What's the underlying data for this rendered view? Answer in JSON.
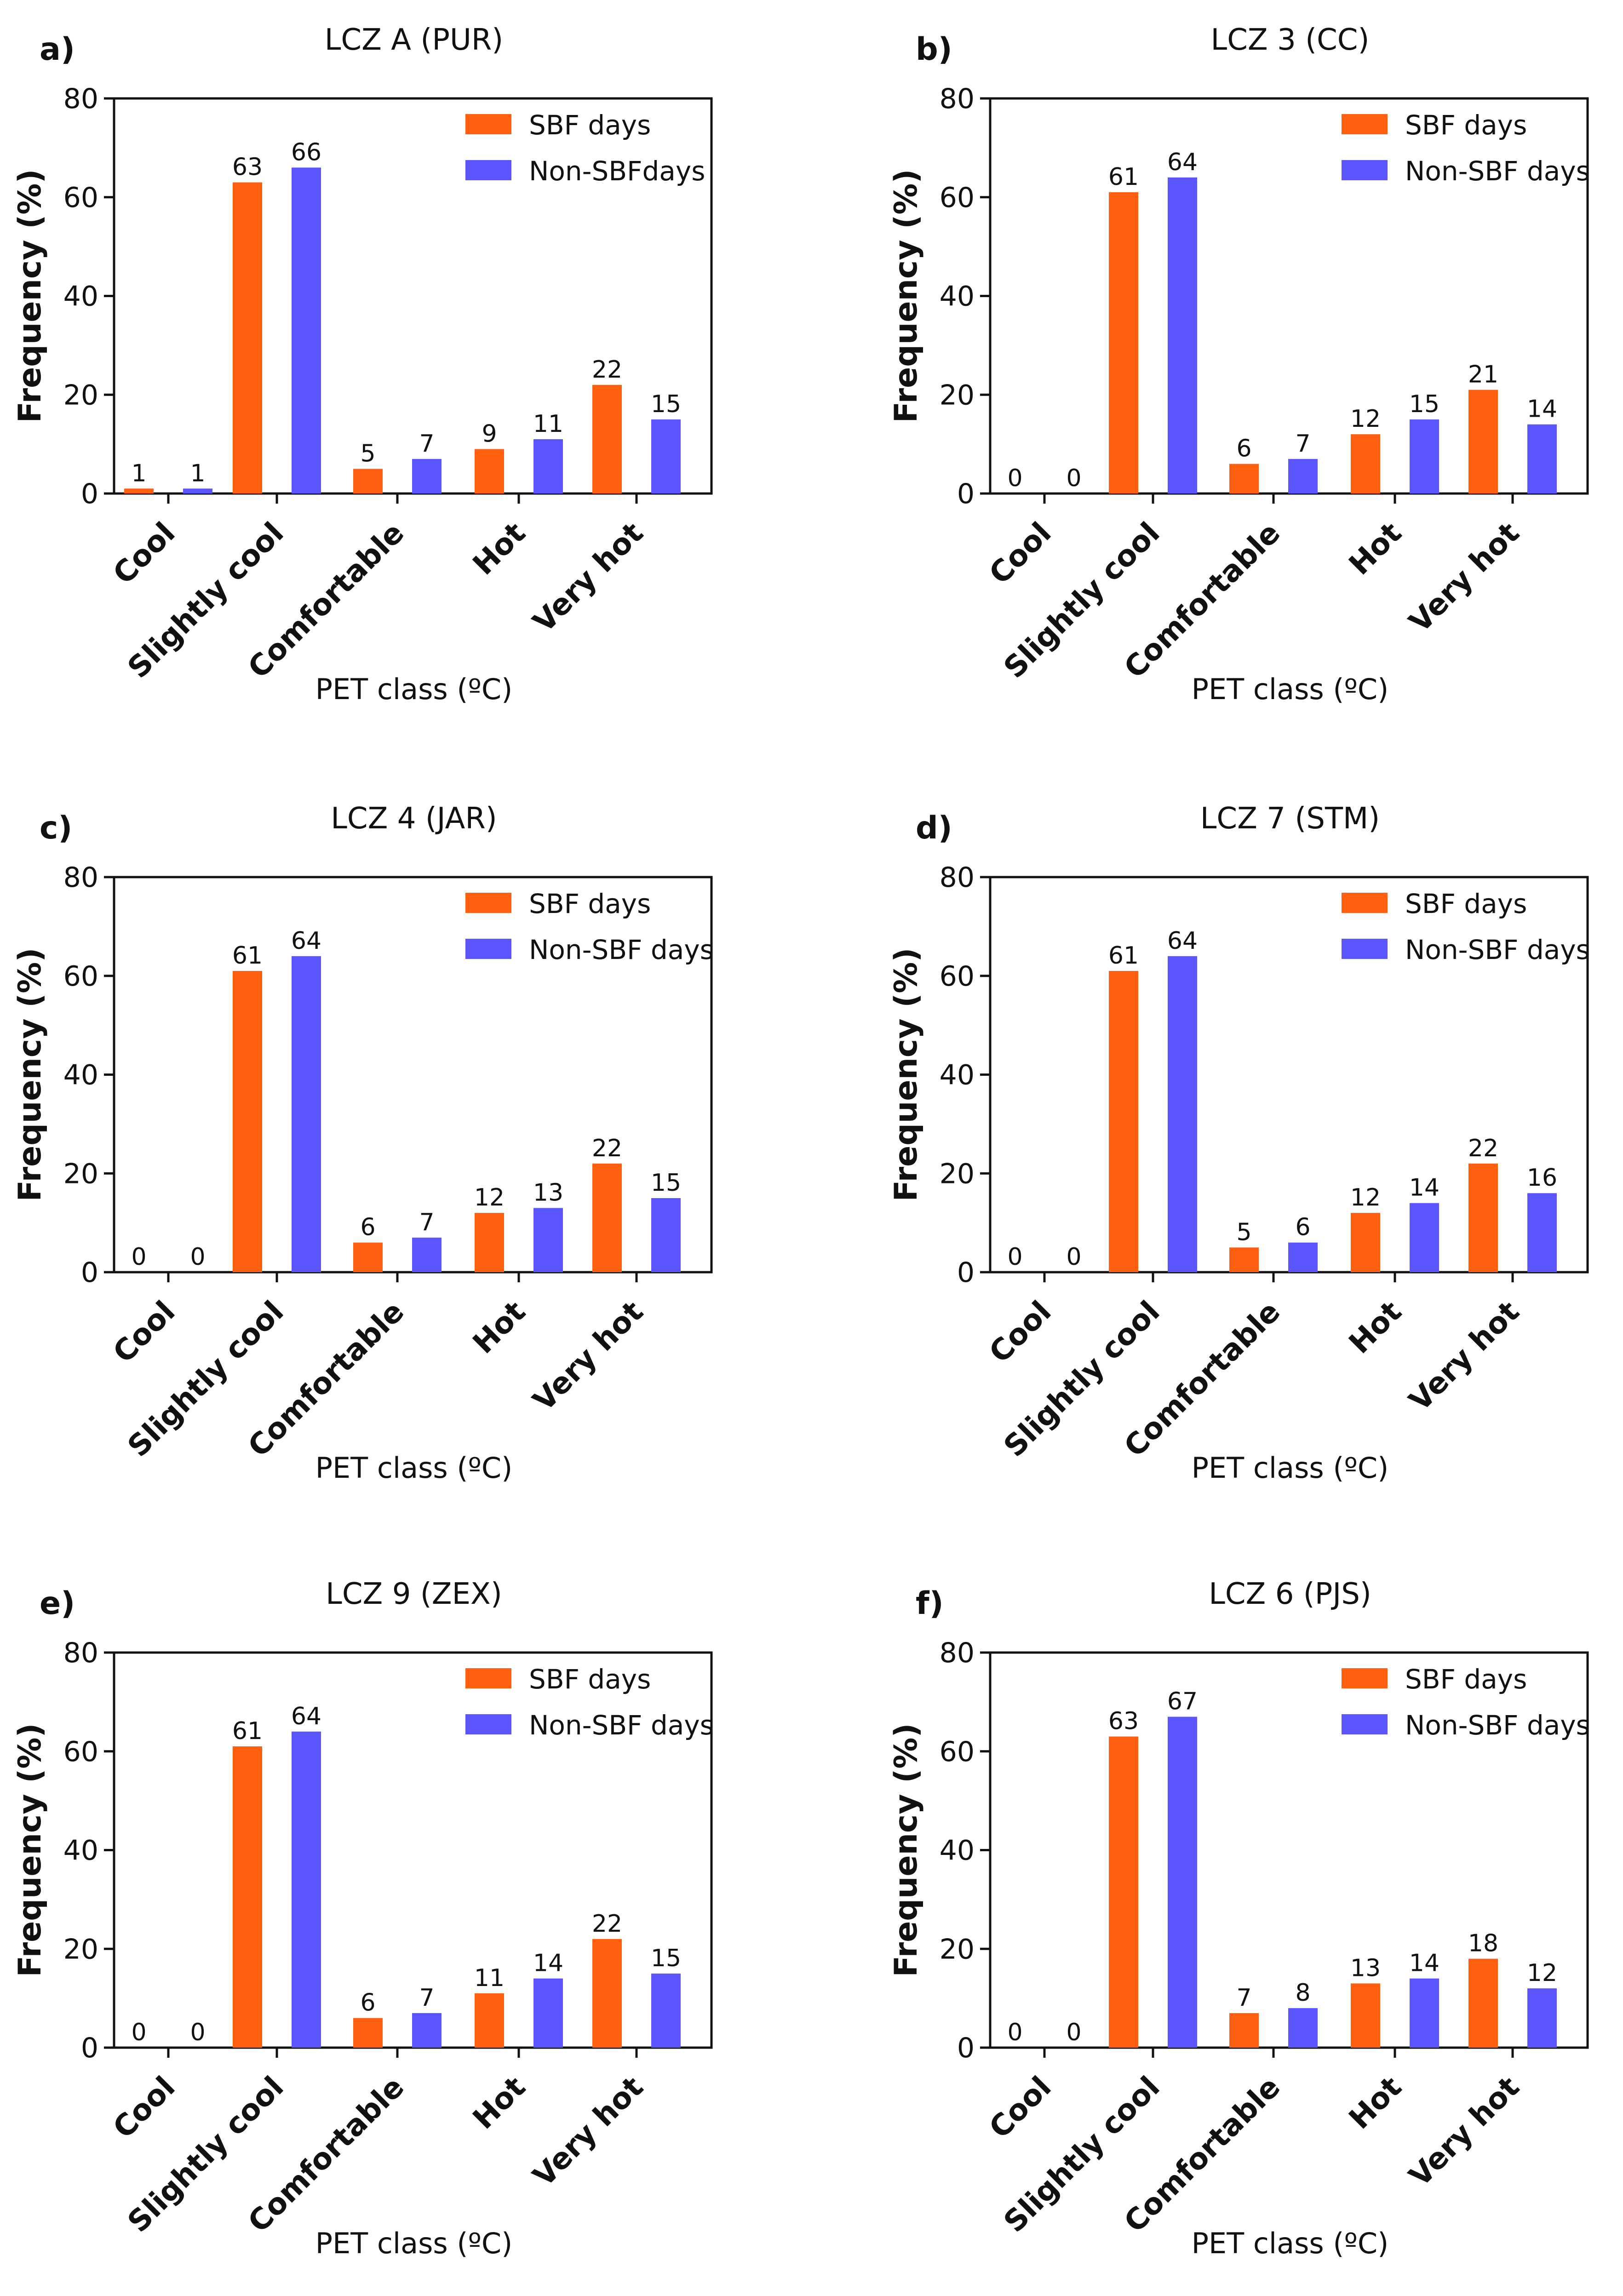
{
  "figure": {
    "colors": {
      "sbf": "#FF5F0F",
      "non_sbf": "#5A55FF",
      "axis": "#111111"
    }
  },
  "chart_data": [
    {
      "type": "bar",
      "panel": "a)",
      "title": "LCZ A (PUR)",
      "xlabel": "PET class (ºC)",
      "ylabel": "Frequency (%)",
      "ylim": [
        0,
        80
      ],
      "yticks": [
        0,
        20,
        40,
        60,
        80
      ],
      "categories": [
        "Cool",
        "Slightly cool",
        "Comfortable",
        "Hot",
        "Very hot"
      ],
      "series": [
        {
          "name": "SBF days",
          "color": "#FF5F0F",
          "values": [
            1,
            63,
            5,
            9,
            22
          ]
        },
        {
          "name": "Non-SBFdays",
          "color": "#5A55FF",
          "values": [
            1,
            66,
            7,
            11,
            15
          ]
        }
      ],
      "legend": "top-right"
    },
    {
      "type": "bar",
      "panel": "b)",
      "title": "LCZ 3 (CC)",
      "xlabel": "PET class (ºC)",
      "ylabel": "Frequency (%)",
      "ylim": [
        0,
        80
      ],
      "yticks": [
        0,
        20,
        40,
        60,
        80
      ],
      "categories": [
        "Cool",
        "Slightly cool",
        "Comfortable",
        "Hot",
        "Very hot"
      ],
      "series": [
        {
          "name": "SBF days",
          "color": "#FF5F0F",
          "values": [
            0,
            61,
            6,
            12,
            21
          ]
        },
        {
          "name": "Non-SBF days",
          "color": "#5A55FF",
          "values": [
            0,
            64,
            7,
            15,
            14
          ]
        }
      ],
      "legend": "top-right"
    },
    {
      "type": "bar",
      "panel": "c)",
      "title": "LCZ 4 (JAR)",
      "xlabel": "PET class (ºC)",
      "ylabel": "Frequency (%)",
      "ylim": [
        0,
        80
      ],
      "yticks": [
        0,
        20,
        40,
        60,
        80
      ],
      "categories": [
        "Cool",
        "Slightly cool",
        "Comfortable",
        "Hot",
        "Very hot"
      ],
      "series": [
        {
          "name": "SBF days",
          "color": "#FF5F0F",
          "values": [
            0,
            61,
            6,
            12,
            22
          ]
        },
        {
          "name": "Non-SBF days",
          "color": "#5A55FF",
          "values": [
            0,
            64,
            7,
            13,
            15
          ]
        }
      ],
      "legend": "top-right"
    },
    {
      "type": "bar",
      "panel": "d)",
      "title": "LCZ 7 (STM)",
      "xlabel": "PET class (ºC)",
      "ylabel": "Frequency (%)",
      "ylim": [
        0,
        80
      ],
      "yticks": [
        0,
        20,
        40,
        60,
        80
      ],
      "categories": [
        "Cool",
        "Slightly cool",
        "Comfortable",
        "Hot",
        "Very hot"
      ],
      "series": [
        {
          "name": "SBF days",
          "color": "#FF5F0F",
          "values": [
            0,
            61,
            5,
            12,
            22
          ]
        },
        {
          "name": "Non-SBF days",
          "color": "#5A55FF",
          "values": [
            0,
            64,
            6,
            14,
            16
          ]
        }
      ],
      "legend": "top-right"
    },
    {
      "type": "bar",
      "panel": "e)",
      "title": "LCZ 9 (ZEX)",
      "xlabel": "PET class (ºC)",
      "ylabel": "Frequency (%)",
      "ylim": [
        0,
        80
      ],
      "yticks": [
        0,
        20,
        40,
        60,
        80
      ],
      "categories": [
        "Cool",
        "Slightly cool",
        "Comfortable",
        "Hot",
        "Very hot"
      ],
      "series": [
        {
          "name": "SBF days",
          "color": "#FF5F0F",
          "values": [
            0,
            61,
            6,
            11,
            22
          ]
        },
        {
          "name": "Non-SBF days",
          "color": "#5A55FF",
          "values": [
            0,
            64,
            7,
            14,
            15
          ]
        }
      ],
      "legend": "top-right"
    },
    {
      "type": "bar",
      "panel": "f)",
      "title": "LCZ 6 (PJS)",
      "xlabel": "PET class (ºC)",
      "ylabel": "Frequency (%)",
      "ylim": [
        0,
        80
      ],
      "yticks": [
        0,
        20,
        40,
        60,
        80
      ],
      "categories": [
        "Cool",
        "Slightly cool",
        "Comfortable",
        "Hot",
        "Very hot"
      ],
      "series": [
        {
          "name": "SBF days",
          "color": "#FF5F0F",
          "values": [
            0,
            63,
            7,
            13,
            18
          ]
        },
        {
          "name": "Non-SBF days",
          "color": "#5A55FF",
          "values": [
            0,
            67,
            8,
            14,
            12
          ]
        }
      ],
      "legend": "top-right"
    }
  ]
}
